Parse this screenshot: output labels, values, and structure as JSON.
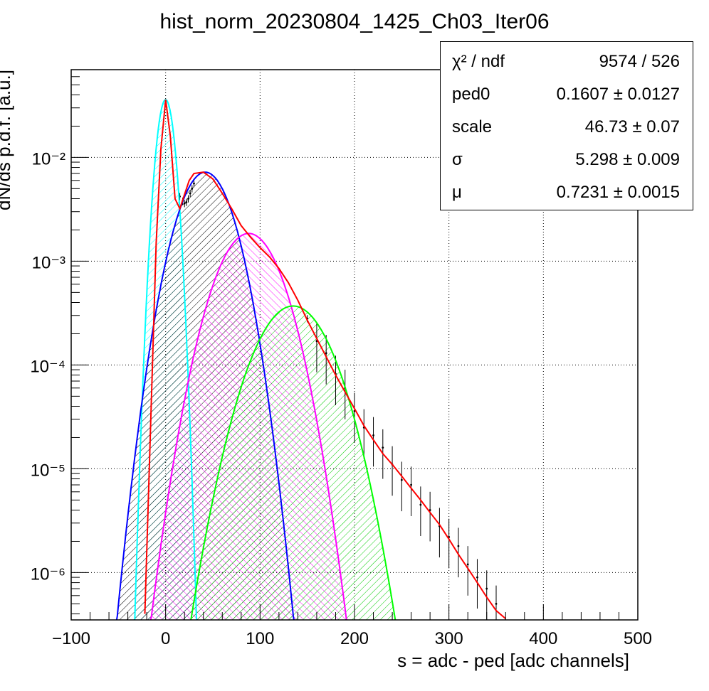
{
  "title": "hist_norm_20230804_1425_Ch03_Iter06",
  "stats": [
    {
      "name": "χ² / ndf",
      "value": "9574 / 526"
    },
    {
      "name": "ped0",
      "value": "0.1607 ± 0.0127"
    },
    {
      "name": "scale",
      "value": "46.73 ± 0.07"
    },
    {
      "name": "σ",
      "value": "5.298 ± 0.009"
    },
    {
      "name": "μ",
      "value": "0.7231 ± 0.0015"
    }
  ],
  "chart_data": {
    "type": "line",
    "title": "hist_norm_20230804_1425_Ch03_Iter06",
    "xlabel": "s = adc - ped [adc channels]",
    "ylabel": "dN/ds p.d.f. [a.u.]",
    "xlim": [
      -100,
      500
    ],
    "ylim": [
      3.5e-07,
      0.07
    ],
    "yscale": "log",
    "grid": true,
    "x_ticks": [
      -100,
      0,
      100,
      200,
      300,
      400,
      500
    ],
    "x_tick_labels": [
      "−100",
      "0",
      "100",
      "200",
      "300",
      "400",
      "500"
    ],
    "y_ticks": [
      1e-06,
      1e-05,
      0.0001,
      0.001,
      0.01
    ],
    "y_tick_labels": [
      "10⁻⁶",
      "10⁻⁵",
      "10⁻⁴",
      "10⁻³",
      "10⁻²"
    ],
    "series": [
      {
        "color": "#ff0000",
        "type": "line",
        "x": [
          -22,
          -10,
          -5,
          0,
          5,
          10,
          15,
          20,
          25,
          30,
          40,
          50,
          60,
          70,
          80,
          90,
          100,
          110,
          120,
          130,
          140,
          150,
          160,
          170,
          180,
          190,
          200,
          210,
          220,
          230,
          240,
          250,
          260,
          270,
          280,
          290,
          300,
          310,
          320,
          330,
          340,
          350,
          360
        ],
        "y": [
          4e-07,
          0.0015,
          0.012,
          0.036,
          0.016,
          0.004,
          0.0032,
          0.0044,
          0.006,
          0.007,
          0.0072,
          0.0062,
          0.0045,
          0.0032,
          0.0022,
          0.0017,
          0.00135,
          0.0011,
          0.00085,
          0.00062,
          0.00042,
          0.00027,
          0.00018,
          0.00012,
          8e-05,
          5.5e-05,
          3.8e-05,
          2.6e-05,
          1.9e-05,
          1.4e-05,
          1.1e-05,
          8.5e-06,
          6.5e-06,
          5e-06,
          3.8e-06,
          2.9e-06,
          2.1e-06,
          1.5e-06,
          1.1e-06,
          8e-07,
          5.8e-07,
          4.3e-07,
          3.6e-07
        ]
      },
      {
        "color": "#00ffff",
        "type": "peak",
        "center": 0,
        "sigma": 6.8,
        "amplitude": 0.036
      },
      {
        "color": "#0000ff",
        "type": "peak",
        "center": 42,
        "sigma": 21,
        "amplitude": 0.0072
      },
      {
        "color": "#ff00ff",
        "type": "peak",
        "center": 88,
        "sigma": 25,
        "amplitude": 0.00185
      },
      {
        "color": "#00ff00",
        "type": "peak",
        "center": 135,
        "sigma": 29,
        "amplitude": 0.00037
      }
    ],
    "data_points": {
      "color": "#000000",
      "x": [
        15,
        18,
        20,
        22,
        24,
        26,
        28,
        30,
        150,
        160,
        170,
        180,
        190,
        200,
        210,
        220,
        230,
        240,
        250,
        260,
        270,
        280,
        290,
        300,
        310,
        320,
        330,
        340,
        350
      ],
      "y": [
        0.0042,
        0.0038,
        0.0036,
        0.0037,
        0.004,
        0.0045,
        0.005,
        0.0056,
        0.00028,
        0.00017,
        0.00013,
        8.2e-05,
        6e-05,
        3.6e-05,
        2.5e-05,
        2.1e-05,
        1.6e-05,
        1.1e-05,
        7.8e-06,
        7e-06,
        4.5e-06,
        4e-06,
        2.8e-06,
        2.2e-06,
        1.8e-06,
        1.2e-06,
        9e-07,
        7e-07,
        5e-07
      ]
    }
  }
}
